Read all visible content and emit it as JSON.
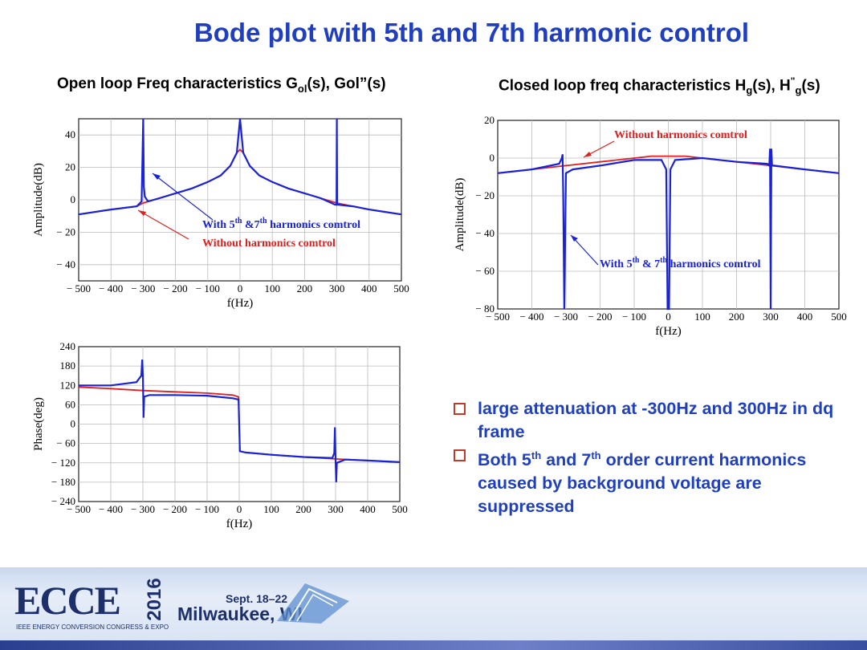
{
  "slide": {
    "title": "Bode plot with 5th and 7th harmonic control",
    "open_loop_title_a": "Open loop Freq characteristics  G",
    "open_loop_title_sub": "ol",
    "open_loop_title_b": "(s), Gol”(s)",
    "closed_loop_title_a": "Closed loop freq characteristics H",
    "closed_loop_title_sub1": "g",
    "closed_loop_title_b": "(s), H",
    "closed_loop_title_sup": "\"",
    "closed_loop_title_sub2": "g",
    "closed_loop_title_c": "(s)"
  },
  "bullets": [
    {
      "text": "large attenuation at -300Hz and 300Hz in dq frame"
    },
    {
      "text_a": "Both 5",
      "sup_a": "th",
      "text_b": " and 7",
      "sup_b": "th",
      "text_c": " order current harmonics caused by background voltage are suppressed"
    }
  ],
  "footer": {
    "logo_text": "ECCE",
    "year": "2016",
    "congress": "IEEE ENERGY CONVERSION CONGRESS & EXPO",
    "dates": "Sept. 18–22",
    "city": "Milwaukee, WI"
  },
  "colors": {
    "with_control": "#1a22d6",
    "without_control": "#e02020",
    "title": "#1f3fbf"
  },
  "chart_data": [
    {
      "type": "line",
      "xlabel": "f(Hz)",
      "ylabel": "Amplitude(dB)",
      "xlim": [
        -500,
        500
      ],
      "ylim": [
        -50,
        50
      ],
      "xticks": [
        "− 500",
        "− 400",
        "− 300",
        "− 200",
        "− 100",
        "0",
        "100",
        "200",
        "300",
        "400",
        "500"
      ],
      "yticks": [
        "40",
        "20",
        "0",
        "− 20",
        "− 40"
      ],
      "grid": true,
      "series": [
        {
          "name": "Without harmonics comtrol",
          "color": "#e02020",
          "x": [
            -500,
            -400,
            -320,
            -300,
            -250,
            -200,
            -150,
            -100,
            -60,
            -30,
            -10,
            0,
            10,
            30,
            60,
            100,
            150,
            200,
            250,
            300,
            350,
            400,
            450,
            500
          ],
          "y": [
            -9,
            -6,
            -4,
            -2,
            1,
            4,
            7,
            11,
            15,
            21,
            29,
            31,
            29,
            21,
            15,
            11,
            7,
            4,
            1,
            -2,
            -4,
            -6,
            -7.5,
            -9
          ]
        },
        {
          "name": "With 5th &7th harmonics comtrol",
          "color": "#1a22d6",
          "x": [
            -500,
            -400,
            -320,
            -305,
            -300,
            -298,
            -295,
            -285,
            -250,
            -200,
            -150,
            -100,
            -60,
            -30,
            -10,
            0,
            10,
            30,
            60,
            100,
            150,
            200,
            250,
            295,
            299,
            300,
            301,
            305,
            350,
            400,
            450,
            500
          ],
          "y": [
            -9,
            -6,
            -4,
            -1,
            50,
            8,
            2,
            -1,
            1,
            4,
            7,
            11,
            15,
            21,
            29,
            50,
            29,
            21,
            15,
            11,
            7,
            4,
            1,
            -3,
            -3,
            50,
            -3,
            -3,
            -4,
            -6,
            -7.5,
            -9
          ]
        }
      ],
      "annotations": [
        {
          "text_a": "With 5",
          "sup_a": "th",
          "text_b": " &7",
          "sup_b": "th",
          "text_c": " harmonics comtrol",
          "color": "#1a22d6"
        },
        {
          "text": "Without harmonics comtrol",
          "color": "#e02020"
        }
      ]
    },
    {
      "type": "line",
      "xlabel": "f(Hz)",
      "ylabel": "Phase(deg)",
      "xlim": [
        -500,
        500
      ],
      "ylim": [
        -240,
        240
      ],
      "xticks": [
        "− 500",
        "− 400",
        "− 300",
        "− 200",
        "− 100",
        "0",
        "100",
        "200",
        "300",
        "400",
        "500"
      ],
      "yticks": [
        "240",
        "180",
        "120",
        "60",
        "0",
        "− 60",
        "− 120",
        "− 180",
        "− 240"
      ],
      "grid": true,
      "series": [
        {
          "name": "Without harmonics comtrol",
          "color": "#e02020",
          "x": [
            -500,
            -400,
            -300,
            -200,
            -100,
            -20,
            -2,
            2,
            20,
            100,
            200,
            300,
            400,
            500
          ],
          "y": [
            115,
            110,
            104,
            100,
            96,
            90,
            84,
            -84,
            -88,
            -95,
            -102,
            -108,
            -113,
            -118
          ]
        },
        {
          "name": "With 5th &7th harmonics comtrol",
          "color": "#1a22d6",
          "x": [
            -500,
            -400,
            -320,
            -305,
            -302,
            -300,
            -298,
            -296,
            -280,
            -250,
            -200,
            -100,
            -20,
            -2,
            2,
            20,
            100,
            200,
            290,
            296,
            298,
            300,
            302,
            304,
            330,
            400,
            500
          ],
          "y": [
            120,
            120,
            130,
            150,
            200,
            150,
            20,
            85,
            90,
            90,
            90,
            88,
            80,
            76,
            -84,
            -88,
            -95,
            -102,
            -105,
            -90,
            -10,
            -110,
            -180,
            -120,
            -110,
            -113,
            -118
          ]
        }
      ]
    },
    {
      "type": "line",
      "xlabel": "f(Hz)",
      "ylabel": "Amplitude(dB)",
      "xlim": [
        -500,
        500
      ],
      "ylim": [
        -80,
        20
      ],
      "xticks": [
        "− 500",
        "− 400",
        "− 300",
        "− 200",
        "− 100",
        "0",
        "100",
        "200",
        "300",
        "400",
        "500"
      ],
      "yticks": [
        "20",
        "0",
        "− 20",
        "− 40",
        "− 60",
        "− 80"
      ],
      "grid": true,
      "series": [
        {
          "name": "Without harmonics comtrol",
          "color": "#e02020",
          "x": [
            -500,
            -400,
            -300,
            -200,
            -100,
            -50,
            0,
            50,
            100,
            200,
            300,
            400,
            500
          ],
          "y": [
            -8,
            -6,
            -4,
            -2,
            0,
            1,
            1,
            1,
            0,
            -2,
            -4,
            -6,
            -8
          ]
        },
        {
          "name": "With 5th & 7th harmonics comtrol",
          "color": "#1a22d6",
          "x": [
            -500,
            -400,
            -320,
            -312,
            -310,
            -308,
            -305,
            -300,
            -280,
            -200,
            -100,
            -20,
            -6,
            -2,
            0,
            2,
            6,
            20,
            100,
            200,
            290,
            296,
            298,
            300,
            302,
            304,
            310,
            400,
            500
          ],
          "y": [
            -8,
            -6,
            -3,
            0,
            2,
            -20,
            -80,
            -8,
            -6,
            -4,
            -1,
            -1,
            -6,
            -80,
            -80,
            -80,
            -6,
            -1,
            0,
            -2,
            -3,
            -4,
            5,
            -80,
            5,
            -4,
            -4,
            -6,
            -8
          ]
        }
      ],
      "annotations": [
        {
          "text": "Without harmonics comtrol",
          "color": "#e02020"
        },
        {
          "text_a": "With 5",
          "sup_a": "th",
          "text_b": " & 7",
          "sup_b": "th",
          "text_c": " harmonics comtrol",
          "color": "#1a22d6"
        }
      ]
    }
  ]
}
